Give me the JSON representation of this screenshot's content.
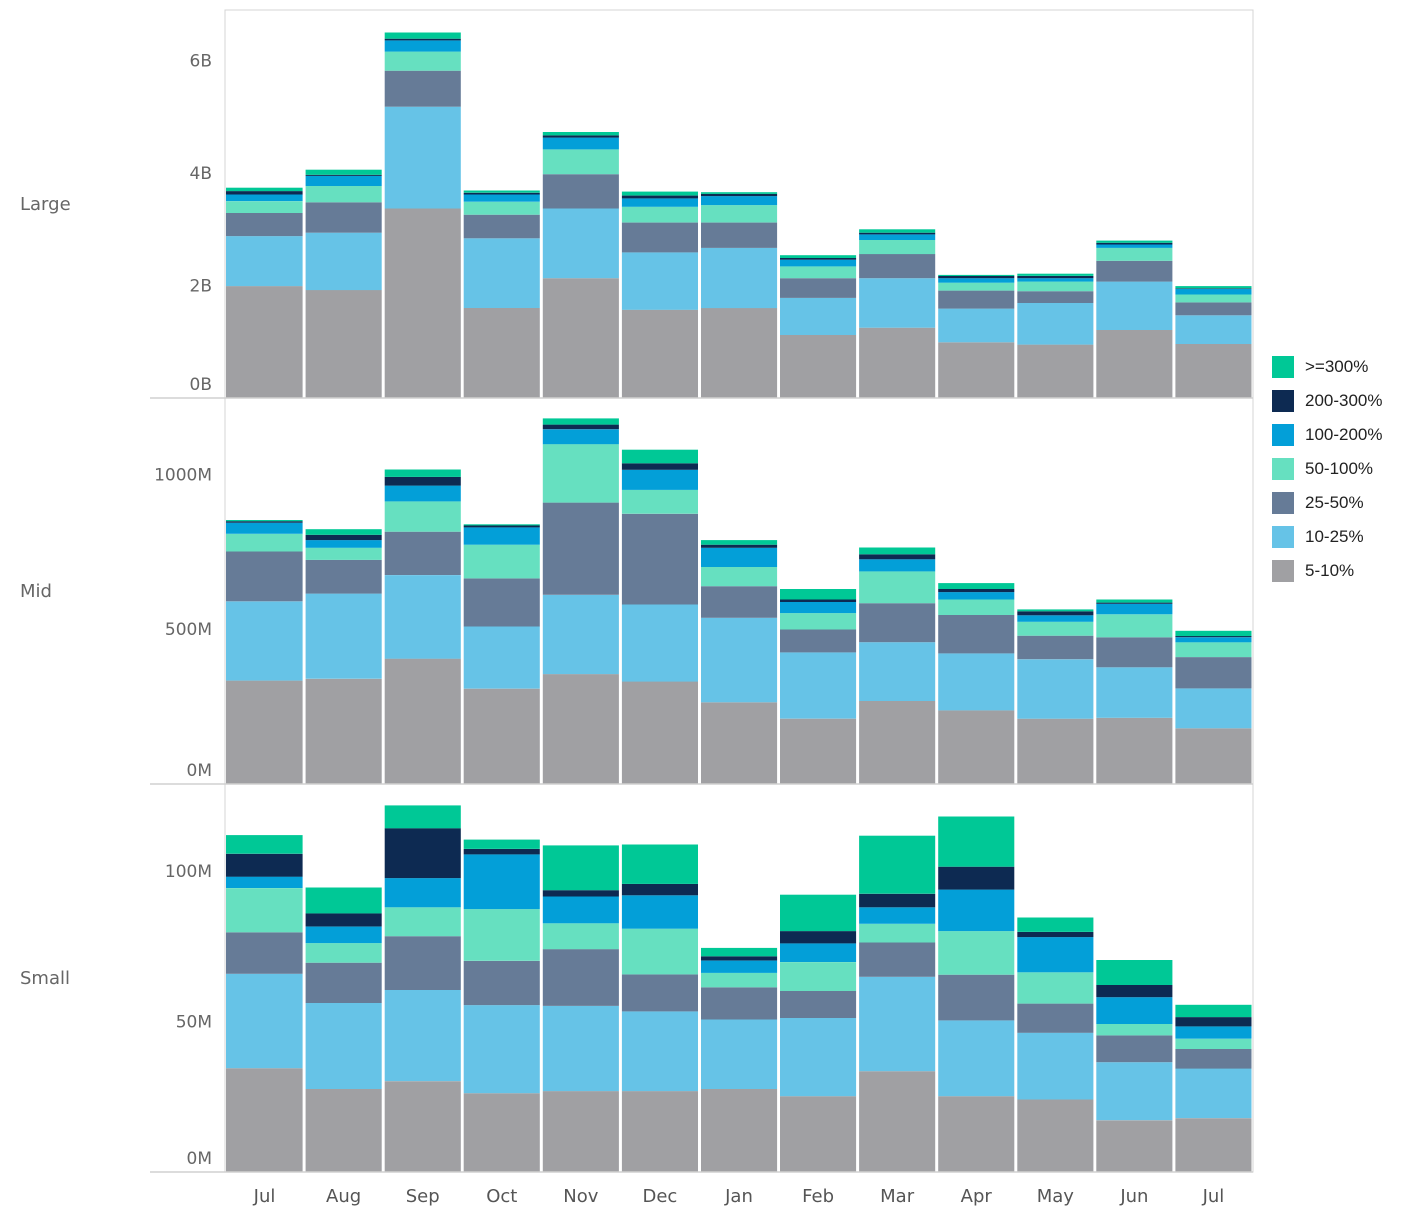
{
  "chart_data": {
    "type": "bar",
    "stacked": true,
    "categories": [
      "Jul",
      "Aug",
      "Sep",
      "Oct",
      "Nov",
      "Dec",
      "Jan",
      "Feb",
      "Mar",
      "Apr",
      "May",
      "Jun",
      "Jul"
    ],
    "stack_order": [
      "5-10%",
      "10-25%",
      "25-50%",
      "50-100%",
      "100-200%",
      "200-300%",
      ">=300%"
    ],
    "colors": {
      ">=300%": "#00c896",
      "200-300%": "#0d2a52",
      "100-200%": "#039fd8",
      "50-100%": "#66e0c0",
      "25-50%": "#667b97",
      "10-25%": "#66c3e7",
      "5-10%": "#a0a0a3"
    },
    "legend": {
      "placement": "right",
      "entries": [
        ">=300%",
        "200-300%",
        "100-200%",
        "50-100%",
        "25-50%",
        "10-25%",
        "5-10%"
      ]
    },
    "panels": [
      {
        "label": "Large",
        "ylim": [
          0,
          6.9
        ],
        "ticks": [
          0,
          2,
          4,
          6
        ],
        "tick_labels": [
          "0B",
          "2B",
          "4B",
          "6B"
        ],
        "unit": "B",
        "series": [
          {
            "name": "5-10%",
            "values": [
              1.99,
              1.92,
              3.37,
              1.6,
              2.13,
              1.57,
              1.6,
              1.12,
              1.25,
              0.99,
              0.95,
              1.21,
              0.96
            ]
          },
          {
            "name": "10-25%",
            "values": [
              0.89,
              1.02,
              1.81,
              1.24,
              1.24,
              1.02,
              1.07,
              0.66,
              0.88,
              0.6,
              0.74,
              0.86,
              0.51
            ]
          },
          {
            "name": "25-50%",
            "values": [
              0.41,
              0.54,
              0.64,
              0.42,
              0.61,
              0.53,
              0.45,
              0.35,
              0.43,
              0.32,
              0.21,
              0.37,
              0.23
            ]
          },
          {
            "name": "50-100%",
            "values": [
              0.21,
              0.29,
              0.34,
              0.23,
              0.44,
              0.28,
              0.31,
              0.21,
              0.25,
              0.14,
              0.17,
              0.23,
              0.14
            ]
          },
          {
            "name": "100-200%",
            "values": [
              0.12,
              0.18,
              0.2,
              0.13,
              0.21,
              0.15,
              0.16,
              0.12,
              0.1,
              0.08,
              0.06,
              0.06,
              0.1
            ]
          },
          {
            "name": "200-300%",
            "values": [
              0.06,
              0.02,
              0.03,
              0.03,
              0.04,
              0.05,
              0.04,
              0.03,
              0.03,
              0.04,
              0.04,
              0.03,
              0.01
            ]
          },
          {
            "name": ">=300%",
            "values": [
              0.06,
              0.09,
              0.11,
              0.04,
              0.06,
              0.07,
              0.03,
              0.05,
              0.06,
              0.02,
              0.04,
              0.04,
              0.04
            ]
          }
        ]
      },
      {
        "label": "Mid",
        "ylim": [
          0,
          1247
        ],
        "ticks": [
          0,
          500,
          1000
        ],
        "tick_labels": [
          "0M",
          "500M",
          "1000M"
        ],
        "unit": "M",
        "series": [
          {
            "name": "5-10%",
            "values": [
              334,
              340,
              405,
              308,
              355,
              331,
              264,
              211,
              268,
              238,
              211,
              214,
              180
            ]
          },
          {
            "name": "10-25%",
            "values": [
              256,
              275,
              270,
              201,
              256,
              249,
              273,
              214,
              190,
              184,
              192,
              163,
              129
            ]
          },
          {
            "name": "25-50%",
            "values": [
              161,
              109,
              140,
              155,
              298,
              293,
              102,
              74,
              126,
              124,
              76,
              97,
              101
            ]
          },
          {
            "name": "50-100%",
            "values": [
              57,
              39,
              98,
              109,
              189,
              77,
              62,
              53,
              103,
              50,
              45,
              74,
              48
            ]
          },
          {
            "name": "100-200%",
            "values": [
              36,
              25,
              51,
              56,
              48,
              65,
              62,
              36,
              39,
              24,
              21,
              34,
              16
            ]
          },
          {
            "name": "200-300%",
            "values": [
              5,
              17,
              28,
              6,
              15,
              21,
              10,
              8,
              16,
              10,
              13,
              4,
              4
            ]
          },
          {
            "name": ">=300%",
            "values": [
              4,
              18,
              24,
              4,
              20,
              44,
              15,
              34,
              22,
              19,
              6,
              10,
              17
            ]
          }
        ]
      },
      {
        "label": "Small",
        "ylim": [
          0,
          129
        ],
        "ticks": [
          0,
          50,
          100
        ],
        "tick_labels": [
          "0M",
          "50M",
          "100M"
        ],
        "unit": "M",
        "series": [
          {
            "name": "5-10%",
            "values": [
              34.5,
              27.6,
              30.2,
              26.2,
              26.9,
              26.9,
              27.6,
              25.2,
              33.5,
              25.2,
              24.1,
              17.2,
              17.9
            ]
          },
          {
            "name": "10-25%",
            "values": [
              31.4,
              28.6,
              30.3,
              29.3,
              28.3,
              26.5,
              23.1,
              26.0,
              31.4,
              25.2,
              22.2,
              19.3,
              16.5
            ]
          },
          {
            "name": "25-50%",
            "values": [
              13.8,
              13.4,
              17.9,
              14.7,
              18.9,
              12.3,
              10.7,
              9.0,
              11.4,
              15.2,
              9.7,
              8.9,
              6.5
            ]
          },
          {
            "name": "50-100%",
            "values": [
              14.7,
              6.5,
              9.6,
              17.2,
              8.6,
              15.2,
              4.8,
              9.6,
              6.2,
              14.5,
              10.4,
              3.8,
              3.4
            ]
          },
          {
            "name": "100-200%",
            "values": [
              3.8,
              5.5,
              9.7,
              18.2,
              8.9,
              11.1,
              4.1,
              6.2,
              5.5,
              13.8,
              11.7,
              8.9,
              4.1
            ]
          },
          {
            "name": "200-300%",
            "values": [
              7.6,
              4.4,
              16.6,
              1.8,
              2.1,
              3.8,
              1.4,
              4.1,
              4.5,
              7.6,
              1.7,
              4.1,
              3.1
            ]
          },
          {
            "name": ">=300%",
            "values": [
              6.2,
              8.6,
              7.6,
              3.1,
              14.9,
              13.1,
              2.8,
              12.1,
              19.3,
              16.7,
              4.8,
              8.3,
              4.1
            ]
          }
        ]
      }
    ]
  }
}
